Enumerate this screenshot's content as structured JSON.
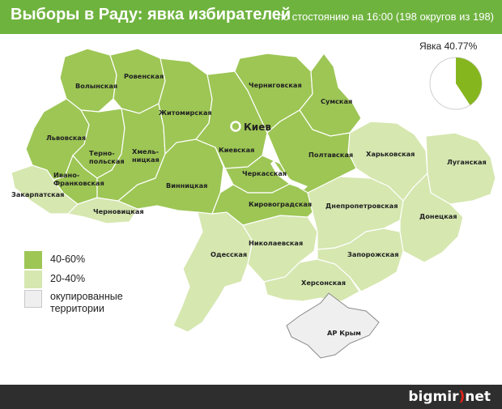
{
  "header": {
    "title": "Выборы в Раду: явка избирателей",
    "subtitle": "по стостоянию на 16:00 (198 округов из 198)"
  },
  "turnout": {
    "label": "Явка 40.77%",
    "value_percent": 40.77
  },
  "legend": [
    {
      "label": "40-60%",
      "color": "#9dc655"
    },
    {
      "label": "20-40%",
      "color": "#d6e7b0"
    },
    {
      "label": "окупированные территории",
      "color": "#efefef"
    }
  ],
  "colors": {
    "header": "#6fb33f",
    "high": "#9dc655",
    "low": "#d6e7b0",
    "occupied": "#efefef",
    "border": "#ffffff",
    "pie_fill": "#86b61e"
  },
  "capital": {
    "label": "Киев"
  },
  "regions": {
    "volyn": "Волынская",
    "rivne": "Ровенская",
    "lviv": "Львовская",
    "ternopil": "Терно-\nпольская",
    "ivano_frankivsk": "Ивано-\nФранковская",
    "zakarpattia": "Закарпатская",
    "chernivtsi": "Черновицкая",
    "khmelnytskyi": "Хмель-\nницкая",
    "zhytomyr": "Житомирская",
    "vinnytsia": "Винницкая",
    "kyiv": "Киевская",
    "chernihiv": "Черниговская",
    "sumy": "Сумская",
    "poltava": "Полтавская",
    "cherkasy": "Черкасская",
    "kirovohrad": "Кировоградская",
    "kharkiv": "Харьковская",
    "luhansk": "Луганская",
    "dnipro": "Днепропетровская",
    "donetsk": "Донецкая",
    "zaporizhzhia": "Запорожская",
    "mykolaiv": "Николаевская",
    "odesa": "Одесская",
    "kherson": "Херсонская",
    "crimea": "АР Крым"
  },
  "footer": {
    "logo_part1": "bigmir",
    "logo_accent": ")",
    "logo_part2": "net"
  }
}
